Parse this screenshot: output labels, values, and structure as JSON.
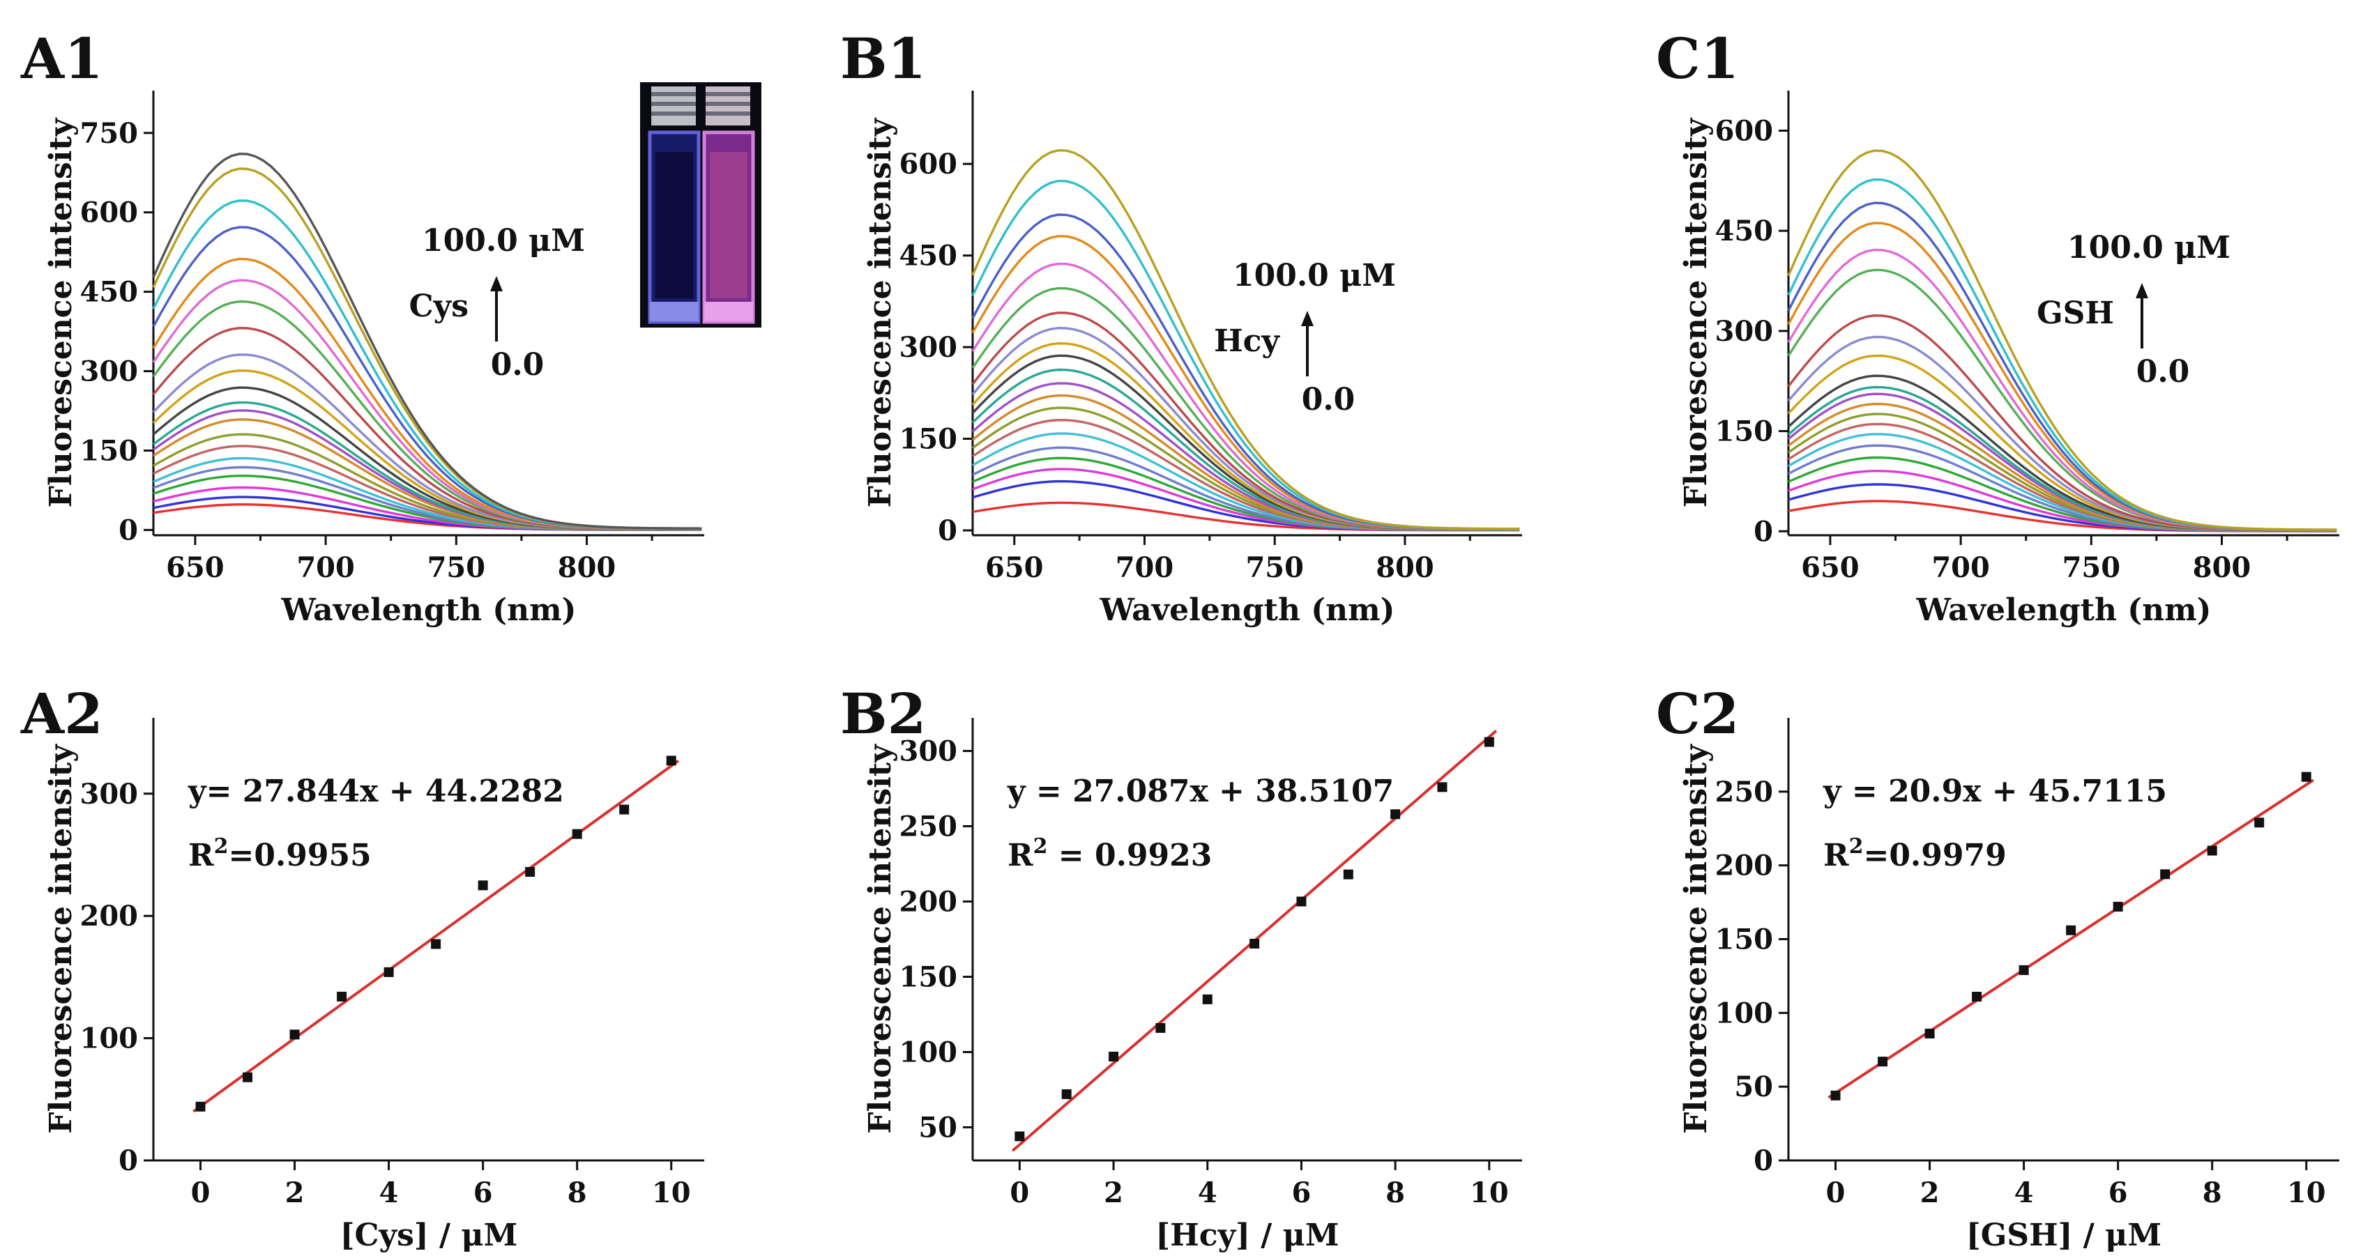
{
  "chart_data": [
    {
      "id": "A1",
      "type": "line",
      "label": "A1",
      "xlabel": "Wavelength (nm)",
      "ylabel": "Fluorescence intensity",
      "xlim": [
        634,
        845
      ],
      "ylim": [
        -10,
        830
      ],
      "xticks": [
        650,
        700,
        750,
        800
      ],
      "yticks": [
        0,
        150,
        300,
        450,
        600,
        750
      ],
      "xtick_labels": [
        "650",
        "700",
        "750",
        "800"
      ],
      "ytick_labels": [
        "0",
        "150",
        "300",
        "450",
        "600",
        "750"
      ],
      "peak_wavelength": 668,
      "series_peaks": [
        48,
        62,
        80,
        102,
        118,
        135,
        158,
        180,
        208,
        225,
        240,
        268,
        300,
        330,
        380,
        430,
        470,
        510,
        570,
        620,
        680,
        708
      ],
      "annotation": {
        "analyte": "Cys",
        "top": "100.0 μM",
        "bottom": "0.0"
      },
      "inset": "photo of two cuvettes under UV light"
    },
    {
      "id": "B1",
      "type": "line",
      "label": "B1",
      "xlabel": "Wavelength (nm)",
      "ylabel": "Fluorescence intensity",
      "xlim": [
        634,
        845
      ],
      "ylim": [
        -8,
        720
      ],
      "xticks": [
        650,
        700,
        750,
        800
      ],
      "yticks": [
        0,
        150,
        300,
        450,
        600
      ],
      "xtick_labels": [
        "650",
        "700",
        "750",
        "800"
      ],
      "ytick_labels": [
        "0",
        "150",
        "300",
        "450",
        "600"
      ],
      "peak_wavelength": 668,
      "series_peaks": [
        45,
        80,
        100,
        118,
        135,
        158,
        180,
        200,
        220,
        240,
        262,
        285,
        305,
        330,
        355,
        395,
        435,
        480,
        515,
        570,
        620
      ],
      "annotation": {
        "analyte": "Hcy",
        "top": "100.0 μM",
        "bottom": "0.0"
      }
    },
    {
      "id": "C1",
      "type": "line",
      "label": "C1",
      "xlabel": "Wavelength (nm)",
      "ylabel": "Fluorescence intensity",
      "xlim": [
        634,
        845
      ],
      "ylim": [
        -6,
        660
      ],
      "xticks": [
        650,
        700,
        750,
        800
      ],
      "yticks": [
        0,
        150,
        300,
        450,
        600
      ],
      "xtick_labels": [
        "650",
        "700",
        "750",
        "800"
      ],
      "ytick_labels": [
        "0",
        "150",
        "300",
        "450",
        "600"
      ],
      "peak_wavelength": 668,
      "series_peaks": [
        45,
        70,
        90,
        110,
        128,
        145,
        160,
        175,
        190,
        205,
        215,
        232,
        262,
        290,
        322,
        390,
        420,
        460,
        490,
        525,
        568
      ],
      "annotation": {
        "analyte": "GSH",
        "top": "100.0 μM",
        "bottom": "0.0"
      }
    },
    {
      "id": "A2",
      "type": "scatter",
      "label": "A2",
      "xlabel": "[Cys] / μM",
      "ylabel": "Fluorescence intensity",
      "xlim": [
        -1,
        10.7
      ],
      "ylim": [
        0,
        362
      ],
      "xticks": [
        0,
        2,
        4,
        6,
        8,
        10
      ],
      "yticks": [
        0,
        100,
        200,
        300
      ],
      "xtick_labels": [
        "0",
        "2",
        "4",
        "6",
        "8",
        "10"
      ],
      "ytick_labels": [
        "0",
        "100",
        "200",
        "300"
      ],
      "x": [
        0,
        1,
        2,
        3,
        4,
        5,
        6,
        7,
        8,
        9,
        10
      ],
      "y": [
        44,
        68,
        103,
        134,
        154,
        177,
        225,
        236,
        267,
        287,
        327
      ],
      "fit": {
        "slope": 27.844,
        "intercept": 44.2282
      },
      "equation": "y= 27.844x + 44.2282",
      "r2": "=0.9955"
    },
    {
      "id": "B2",
      "type": "scatter",
      "label": "B2",
      "xlabel": "[Hcy] / μM",
      "ylabel": "Fluorescence intensity",
      "xlim": [
        -1,
        10.7
      ],
      "ylim": [
        28,
        322
      ],
      "xticks": [
        0,
        2,
        4,
        6,
        8,
        10
      ],
      "yticks": [
        50,
        100,
        150,
        200,
        250,
        300
      ],
      "xtick_labels": [
        "0",
        "2",
        "4",
        "6",
        "8",
        "10"
      ],
      "ytick_labels": [
        "50",
        "100",
        "150",
        "200",
        "250",
        "300"
      ],
      "x": [
        0,
        1,
        2,
        3,
        4,
        5,
        6,
        7,
        8,
        9,
        10
      ],
      "y": [
        44,
        72,
        97,
        116,
        135,
        172,
        200,
        218,
        258,
        276,
        306
      ],
      "fit": {
        "slope": 27.087,
        "intercept": 38.5107
      },
      "equation": "y = 27.087x + 38.5107",
      "r2": " = 0.9923"
    },
    {
      "id": "C2",
      "type": "scatter",
      "label": "C2",
      "xlabel": "[GSH] / μM",
      "ylabel": "Fluorescence intensity",
      "xlim": [
        -1,
        10.7
      ],
      "ylim": [
        0,
        300
      ],
      "xticks": [
        0,
        2,
        4,
        6,
        8,
        10
      ],
      "yticks": [
        0,
        50,
        100,
        150,
        200,
        250
      ],
      "xtick_labels": [
        "0",
        "2",
        "4",
        "6",
        "8",
        "10"
      ],
      "ytick_labels": [
        "0",
        "50",
        "100",
        "150",
        "200",
        "250"
      ],
      "x": [
        0,
        1,
        2,
        3,
        4,
        5,
        6,
        7,
        8,
        9,
        10
      ],
      "y": [
        44,
        67,
        86,
        111,
        129,
        156,
        172,
        194,
        210,
        229,
        260
      ],
      "fit": {
        "slope": 20.9,
        "intercept": 45.7115
      },
      "equation": "y = 20.9x + 45.7115",
      "r2": "=0.9979"
    }
  ],
  "palette": [
    "#e8312f",
    "#2f34d8",
    "#e039d6",
    "#2fa836",
    "#6e7dd0",
    "#3fbfd8",
    "#c46464",
    "#8f9e2c",
    "#d58a2a",
    "#a050c8",
    "#2aa890",
    "#444444",
    "#d2a316",
    "#8a8ad0",
    "#bd4a4a",
    "#55b055",
    "#e06ad6",
    "#e28a1a",
    "#4a60c8",
    "#30c0cc",
    "#b8a020",
    "#555555"
  ],
  "fit_color": "#d93030",
  "marker_color": "#111111",
  "r2_prefix": "R"
}
